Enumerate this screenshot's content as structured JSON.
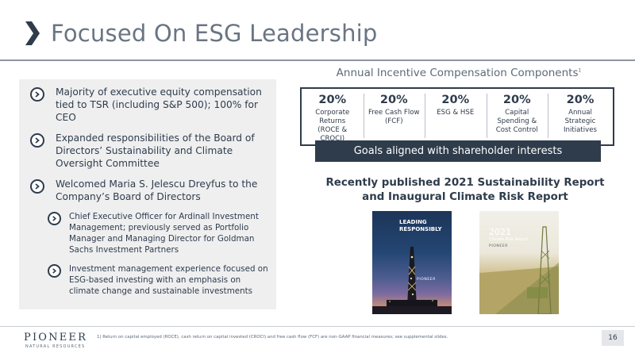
{
  "slide": {
    "title": "Focused On ESG Leadership",
    "page_number": "16"
  },
  "left_panel": {
    "bullets": [
      "Majority of executive equity compensation tied to TSR (including S&P 500); 100% for CEO",
      "Expanded responsibilities of the Board of Directors’ Sustainability and Climate Oversight Committee",
      "Welcomed Maria S. Jelescu Dreyfus to the Company’s Board of Directors"
    ],
    "sub_bullets": [
      "Chief Executive Officer for Ardinall Investment Management; previously served as Portfolio Manager and Managing Director for Goldman Sachs Investment Partners",
      "Investment management experience focused on ESG-based investing with an emphasis on climate change and sustainable investments"
    ]
  },
  "compensation": {
    "title": "Annual Incentive Compensation Components",
    "title_marker": "1",
    "components": [
      {
        "percent": "20%",
        "label": "Corporate Returns (ROCE & CROCI)"
      },
      {
        "percent": "20%",
        "label": "Free Cash Flow (FCF)"
      },
      {
        "percent": "20%",
        "label": "ESG & HSE"
      },
      {
        "percent": "20%",
        "label": "Capital Spending & Cost Control"
      },
      {
        "percent": "20%",
        "label": "Annual Strategic Initiatives"
      }
    ],
    "banner": "Goals aligned with shareholder interests"
  },
  "reports": {
    "heading": "Recently published 2021 Sustainability Report and Inaugural Climate Risk Report",
    "cover1_title": "LEADING RESPONSIBLY",
    "cover1_brand": "PIONEER",
    "cover2_year": "2021",
    "cover2_title": "Climate Risk Report",
    "cover2_brand": "PIONEER"
  },
  "footer": {
    "logo": "PIONEER",
    "logo_sub": "NATURAL RESOURCES",
    "footnote": "1) Return on capital employed (ROCE), cash return on capital invested (CROCI) and free cash flow (FCF) are non-GAAP financial measures; see supplemental slides."
  },
  "colors": {
    "navy": "#2f3c4c",
    "title_gray": "#6a7583",
    "panel_gray": "#efeff0"
  }
}
